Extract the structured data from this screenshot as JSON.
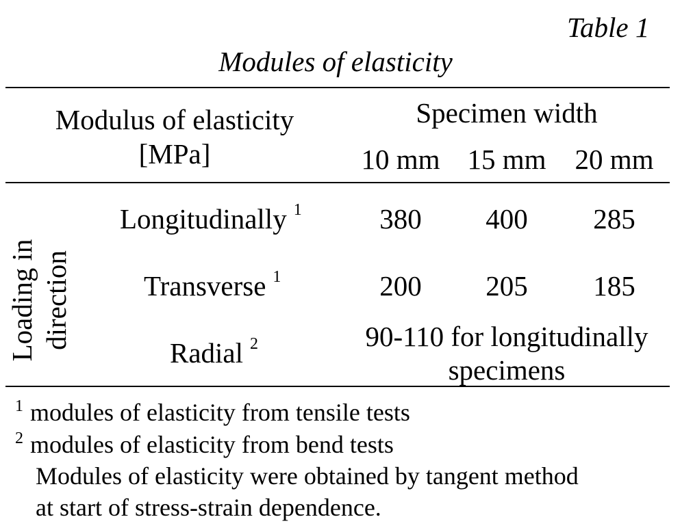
{
  "table_label": "Table 1",
  "caption": "Modules of elasticity",
  "header": {
    "left_line1": "Modulus of elasticity",
    "left_line2": "[MPa]",
    "group": "Specimen width",
    "columns": [
      "10 mm",
      "15 mm",
      "20 mm"
    ]
  },
  "row_group": {
    "line1": "Loading in",
    "line2": "direction"
  },
  "rows": [
    {
      "label": "Longitudinally",
      "mark": "1",
      "values": [
        "380",
        "400",
        "285"
      ]
    },
    {
      "label": "Transverse",
      "mark": "1",
      "values": [
        "200",
        "205",
        "185"
      ]
    },
    {
      "label": "Radial",
      "mark": "2",
      "merged_line1": "90-110 for longitudinally",
      "merged_line2": "specimens"
    }
  ],
  "footnotes": [
    {
      "mark": "1",
      "text": "modules of elasticity from tensile tests"
    },
    {
      "mark": "2",
      "text": "modules of elasticity from bend tests"
    }
  ],
  "note_line1": "Modules of elasticity were obtained by tangent method",
  "note_line2": "at start of stress-strain dependence."
}
